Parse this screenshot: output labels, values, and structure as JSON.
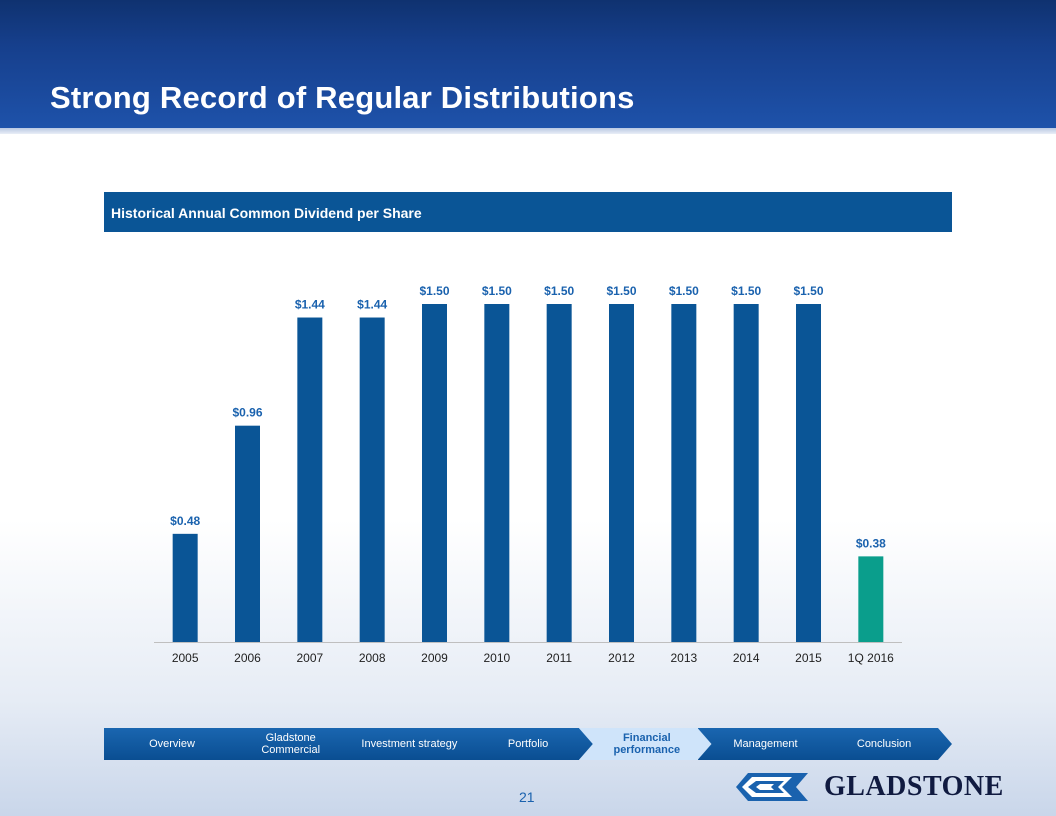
{
  "page": {
    "title": "Strong Record of Regular Distributions",
    "page_number": "21"
  },
  "chart_data": {
    "type": "bar",
    "title": "Historical Annual Common Dividend per Share",
    "categories": [
      "2005",
      "2006",
      "2007",
      "2008",
      "2009",
      "2010",
      "2011",
      "2012",
      "2013",
      "2014",
      "2015",
      "1Q 2016"
    ],
    "values": [
      0.48,
      0.96,
      1.44,
      1.44,
      1.5,
      1.5,
      1.5,
      1.5,
      1.5,
      1.5,
      1.5,
      0.38
    ],
    "value_labels": [
      "$0.48",
      "$0.96",
      "$1.44",
      "$1.44",
      "$1.50",
      "$1.50",
      "$1.50",
      "$1.50",
      "$1.50",
      "$1.50",
      "$1.50",
      "$0.38"
    ],
    "xlabel": "",
    "ylabel": "",
    "ylim": [
      0,
      1.5
    ],
    "grid": false,
    "bar_color": "#0a5596",
    "highlight_color": "#0a9e8c",
    "highlight_index": 11,
    "label_color": "#1a62ae"
  },
  "nav": {
    "items": [
      {
        "label": "Overview",
        "active": false
      },
      {
        "label": "Gladstone Commercial",
        "active": false
      },
      {
        "label": "Investment strategy",
        "active": false
      },
      {
        "label": "Portfolio",
        "active": false
      },
      {
        "label": "Financial performance",
        "active": true
      },
      {
        "label": "Management",
        "active": false
      },
      {
        "label": "Conclusion",
        "active": false
      }
    ]
  },
  "logo": {
    "text": "GLADSTONE",
    "icon": "gladstone-logo-mark"
  },
  "colors": {
    "header_top": "#0f3270",
    "header_bottom": "#1e52aa",
    "accent": "#1a62ae"
  }
}
